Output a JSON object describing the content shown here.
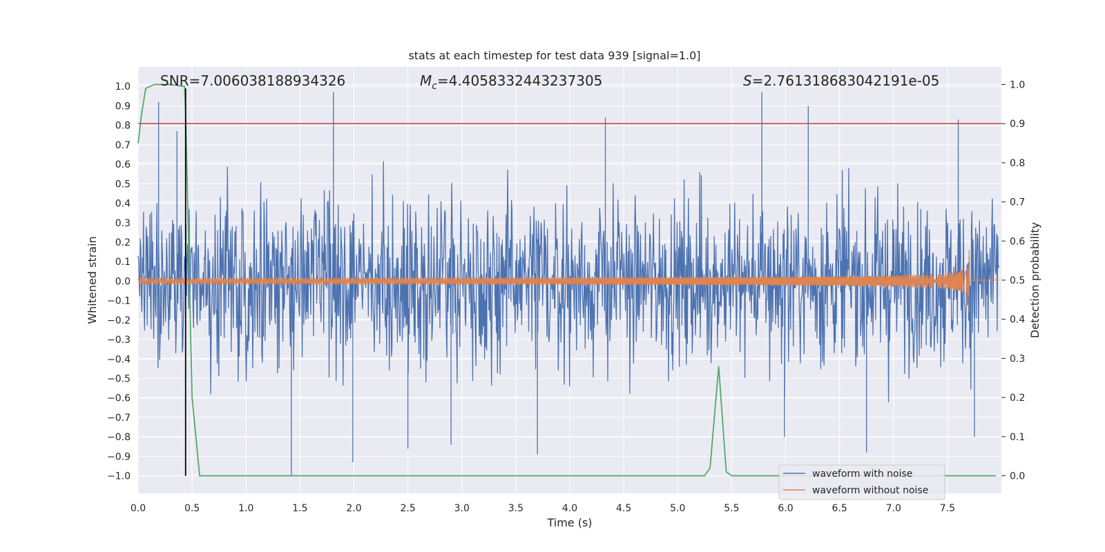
{
  "chart_data": {
    "type": "line",
    "title": "stats at each timestep for test data 939 [signal=1.0]",
    "xlabel": "Time (s)",
    "ylabel_left": "Whitened strain",
    "ylabel_right": "Detection probability",
    "xlim": [
      0.0,
      8.0
    ],
    "ylim_left": [
      -1.09,
      1.1
    ],
    "ylim_right": [
      -0.045,
      1.045
    ],
    "grid": true,
    "legend_position": "lower-right",
    "x_ticks": [
      0.0,
      0.5,
      1.0,
      1.5,
      2.0,
      2.5,
      3.0,
      3.5,
      4.0,
      4.5,
      5.0,
      5.5,
      6.0,
      6.5,
      7.0,
      7.5
    ],
    "x_tick_labels": [
      "0.0",
      "0.5",
      "1.0",
      "1.5",
      "2.0",
      "2.5",
      "3.0",
      "3.5",
      "4.0",
      "4.5",
      "5.0",
      "5.5",
      "6.0",
      "6.5",
      "7.0",
      "7.5"
    ],
    "y_left_ticks": [
      1.0,
      0.9,
      0.8,
      0.7,
      0.6,
      0.5,
      0.4,
      0.3,
      0.2,
      0.1,
      0.0,
      -0.1,
      -0.2,
      -0.3,
      -0.4,
      -0.5,
      -0.6,
      -0.7,
      -0.8,
      -0.9,
      -1.0
    ],
    "y_left_tick_labels": [
      "1.0",
      "0.9",
      "0.8",
      "0.7",
      "0.6",
      "0.5",
      "0.4",
      "0.3",
      "0.2",
      "0.1",
      "0.0",
      "−0.1",
      "−0.2",
      "−0.3",
      "−0.4",
      "−0.5",
      "−0.6",
      "−0.7",
      "−0.8",
      "−0.9",
      "−1.0"
    ],
    "y_right_ticks": [
      1.0,
      0.9,
      0.8,
      0.7,
      0.6,
      0.5,
      0.4,
      0.3,
      0.2,
      0.1,
      0.0
    ],
    "y_right_tick_labels": [
      "1.0",
      "0.9",
      "0.8",
      "0.7",
      "0.6",
      "0.5",
      "0.4",
      "0.3",
      "0.2",
      "0.1",
      "0.0"
    ],
    "annotations": {
      "snr": "SNR=7.006038188934326",
      "mc_symbol": "M",
      "mc_sub": "c",
      "mc_value": "=4.4058332443237305",
      "s_symbol": "S",
      "s_value": "=2.761318683042191e-05"
    },
    "series": [
      {
        "name": "waveform with noise",
        "color": "#4c72b0",
        "axis": "left",
        "kind": "noise",
        "envelope": 0.5,
        "spikes": [
          {
            "x": 0.19,
            "y": 0.92
          },
          {
            "x": 0.36,
            "y": 0.77
          },
          {
            "x": 1.42,
            "y": -1.0
          },
          {
            "x": 1.81,
            "y": 0.97
          },
          {
            "x": 1.99,
            "y": -0.93
          },
          {
            "x": 2.5,
            "y": -0.86
          },
          {
            "x": 2.9,
            "y": -0.84
          },
          {
            "x": 3.7,
            "y": -0.89
          },
          {
            "x": 4.33,
            "y": 0.84
          },
          {
            "x": 5.78,
            "y": 0.97
          },
          {
            "x": 5.99,
            "y": -0.8
          },
          {
            "x": 6.21,
            "y": 0.9
          },
          {
            "x": 6.75,
            "y": -0.88
          },
          {
            "x": 7.6,
            "y": 0.83
          },
          {
            "x": 7.75,
            "y": -0.8
          }
        ]
      },
      {
        "name": "waveform without noise",
        "color": "#dd8452",
        "axis": "left",
        "kind": "chirp",
        "start_amplitude": 0.015,
        "peak_amplitude": 0.16,
        "merger_time": 7.7,
        "ringdown_amplitude": 0.005
      },
      {
        "name": "detection probability",
        "color": "#55a868",
        "axis": "right",
        "kind": "line",
        "x": [
          0.0,
          0.03,
          0.07,
          0.15,
          0.3,
          0.43,
          0.44,
          0.5,
          0.57,
          0.6,
          1.0,
          2.0,
          3.0,
          4.0,
          5.0,
          5.25,
          5.3,
          5.38,
          5.45,
          5.5,
          6.0,
          7.0,
          7.95
        ],
        "y": [
          0.85,
          0.92,
          0.99,
          1.0,
          1.0,
          0.995,
          0.93,
          0.2,
          0.0,
          0.0,
          0.0,
          0.0,
          0.0,
          0.0,
          0.0,
          0.0,
          0.02,
          0.28,
          0.01,
          0.0,
          0.0,
          0.0,
          0.0
        ]
      }
    ],
    "threshold_line": {
      "axis": "right",
      "y": 0.9,
      "color": "#c44e52"
    },
    "vertical_marker": {
      "x": 0.44,
      "y_top": 0.99,
      "y_bottom": -1.0,
      "color": "#000000"
    }
  }
}
